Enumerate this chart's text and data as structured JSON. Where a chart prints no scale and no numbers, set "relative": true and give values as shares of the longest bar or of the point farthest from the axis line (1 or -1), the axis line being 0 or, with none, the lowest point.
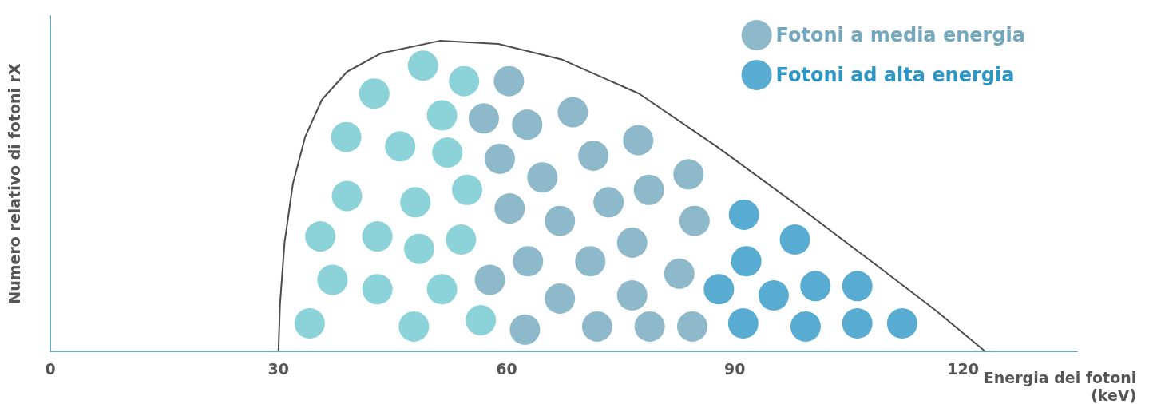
{
  "chart_data": {
    "type": "scatter",
    "xlabel": "Energia dei fotoni\n(keV)",
    "ylabel": "Numero relativo di fotoni rX",
    "relative": true,
    "xlim": [
      0,
      135
    ],
    "xticks": [
      0,
      30,
      60,
      90,
      120
    ],
    "legend": "top right",
    "series": [
      {
        "type": "line",
        "color": "#4d4d4d",
        "marker": "none",
        "x": [
          30,
          30.2,
          30.8,
          31.9,
          33.5,
          35.7,
          39.0,
          43.5,
          51.2,
          58.9,
          67.2,
          77.4,
          87.6,
          98.2,
          109.0,
          116.5,
          122.9
        ],
        "values": [
          0,
          0.15,
          0.35,
          0.54,
          0.69,
          0.81,
          0.9,
          0.96,
          1,
          0.99,
          0.94,
          0.83,
          0.66,
          0.47,
          0.27,
          0.13,
          0
        ]
      },
      {
        "color": "#6fc8d0",
        "marker": "circle",
        "x": [
          49.0,
          54.4,
          42.6,
          51.5,
          38.9,
          46.0,
          52.2,
          39.0,
          48.0,
          54.8,
          35.5,
          43.0,
          48.5,
          54.0,
          37.1,
          43.0,
          51.5,
          34.1,
          47.8,
          56.6
        ],
        "values": [
          0.92,
          0.87,
          0.83,
          0.76,
          0.69,
          0.66,
          0.64,
          0.5,
          0.48,
          0.52,
          0.37,
          0.37,
          0.33,
          0.36,
          0.23,
          0.2,
          0.2,
          0.09,
          0.08,
          0.1
        ]
      },
      {
        "name": "Fotoni a media energia",
        "color": "#72a7bd",
        "marker": "circle",
        "x": [
          60.3,
          57.0,
          62.7,
          68.7,
          59.1,
          71.4,
          77.3,
          64.7,
          60.4,
          73.4,
          78.7,
          83.9,
          67.0,
          76.5,
          84.7,
          62.8,
          71.0,
          57.8,
          82.7,
          67.0,
          76.5,
          62.4,
          71.9,
          78.8,
          84.4
        ],
        "values": [
          0.87,
          0.75,
          0.73,
          0.77,
          0.62,
          0.63,
          0.68,
          0.56,
          0.46,
          0.48,
          0.52,
          0.57,
          0.42,
          0.35,
          0.42,
          0.29,
          0.29,
          0.23,
          0.25,
          0.17,
          0.18,
          0.07,
          0.08,
          0.08,
          0.08
        ]
      },
      {
        "name": "Fotoni ad alta energia",
        "color": "#2e96c5",
        "marker": "circle",
        "x": [
          91.2,
          97.9,
          91.5,
          87.9,
          95.1,
          100.6,
          106.1,
          91.1,
          99.3,
          106.1,
          112.0
        ],
        "values": [
          0.44,
          0.36,
          0.29,
          0.2,
          0.18,
          0.21,
          0.21,
          0.09,
          0.08,
          0.09,
          0.09
        ]
      }
    ]
  }
}
